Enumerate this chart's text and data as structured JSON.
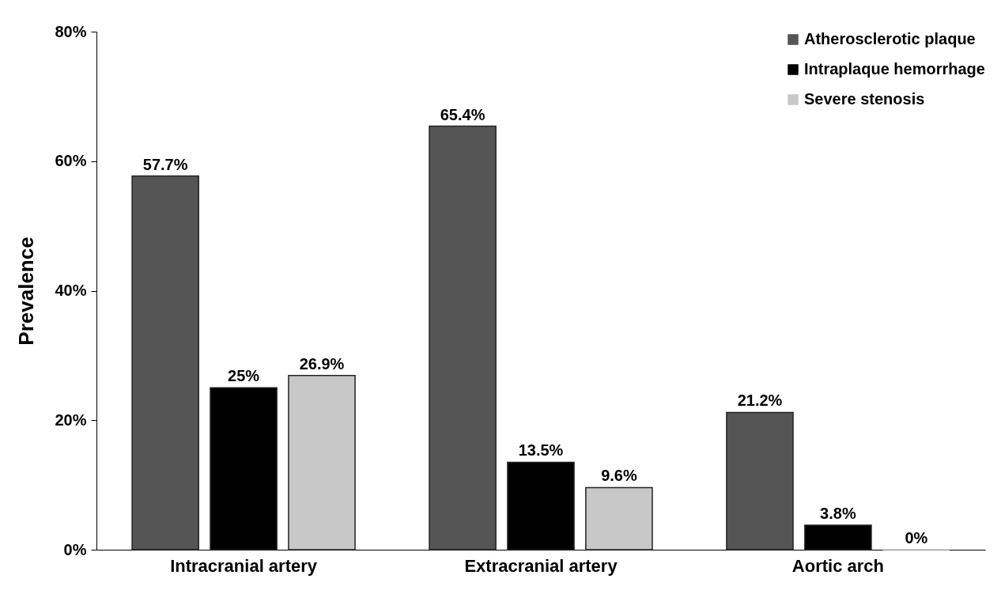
{
  "chart_data": {
    "type": "bar",
    "ylabel": "Prevalence",
    "categories": [
      "Intracranial artery",
      "Extracranial artery",
      "Aortic arch"
    ],
    "series": [
      {
        "name": "Atherosclerotic plaque",
        "color": "#555555",
        "values": [
          57.7,
          65.4,
          21.2
        ],
        "value_labels": [
          "57.7%",
          "65.4%",
          "21.2%"
        ]
      },
      {
        "name": "Intraplaque hemorrhage",
        "color": "#000000",
        "values": [
          25,
          13.5,
          3.8
        ],
        "value_labels": [
          "25%",
          "13.5%",
          "3.8%"
        ]
      },
      {
        "name": "Severe stenosis",
        "color": "#c8c8c8",
        "values": [
          26.9,
          9.6,
          0
        ],
        "value_labels": [
          "26.9%",
          "9.6%",
          "0%"
        ]
      }
    ],
    "ylim": [
      0,
      80
    ],
    "yticks": [
      {
        "value": 0,
        "label": "0%"
      },
      {
        "value": 20,
        "label": "20%"
      },
      {
        "value": 40,
        "label": "40%"
      },
      {
        "value": 60,
        "label": "60%"
      },
      {
        "value": 80,
        "label": "80%"
      }
    ],
    "grid": false,
    "legend": "top right"
  }
}
